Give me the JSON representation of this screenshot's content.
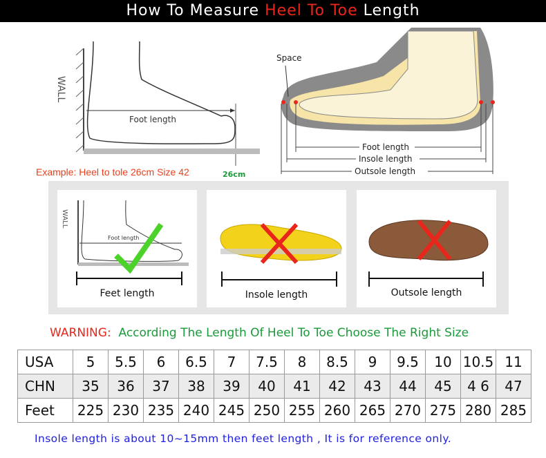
{
  "title": {
    "prefix": "How To Measure ",
    "highlight": "Heel To Toe",
    "suffix": " Length"
  },
  "diagram_left": {
    "wall": "WALL",
    "foot_length": "Foot length",
    "example": "Example: Heel to tole 26cm Size 42",
    "mark": "26cm"
  },
  "diagram_right": {
    "space": "Space",
    "foot_length": "Foot length",
    "insole_length": "Insole length",
    "outsole_length": "Outsole length"
  },
  "cards": [
    {
      "label": "Feet length",
      "mark": "check",
      "wall": "WALL",
      "foot_length": "Foot length"
    },
    {
      "label": "Insole length",
      "mark": "cross"
    },
    {
      "label": "Outsole length",
      "mark": "cross"
    }
  ],
  "warning": {
    "prefix": "WARNING:",
    "text": "According The Length Of Heel To Toe Choose The Right Size"
  },
  "size_table": {
    "rows": [
      {
        "label": "USA",
        "values": [
          "5",
          "5.5",
          "6",
          "6.5",
          "7",
          "7.5",
          "8",
          "8.5",
          "9",
          "9.5",
          "10",
          "10.5",
          "11"
        ]
      },
      {
        "label": "CHN",
        "values": [
          "35",
          "36",
          "37",
          "38",
          "39",
          "40",
          "41",
          "42",
          "43",
          "44",
          "45",
          "4 6",
          "47"
        ]
      },
      {
        "label": "Feet",
        "values": [
          "225",
          "230",
          "235",
          "240",
          "245",
          "250",
          "255",
          "260",
          "265",
          "270",
          "275",
          "280",
          "285"
        ]
      }
    ]
  },
  "footnote": "Insole length is about 10~15mm then feet length , It is for reference only.",
  "colors": {
    "accent_red": "#e8261b",
    "green": "#1a9a3a",
    "blue": "#2020e0",
    "check": "#4cd22a",
    "cross": "#e8261b"
  }
}
